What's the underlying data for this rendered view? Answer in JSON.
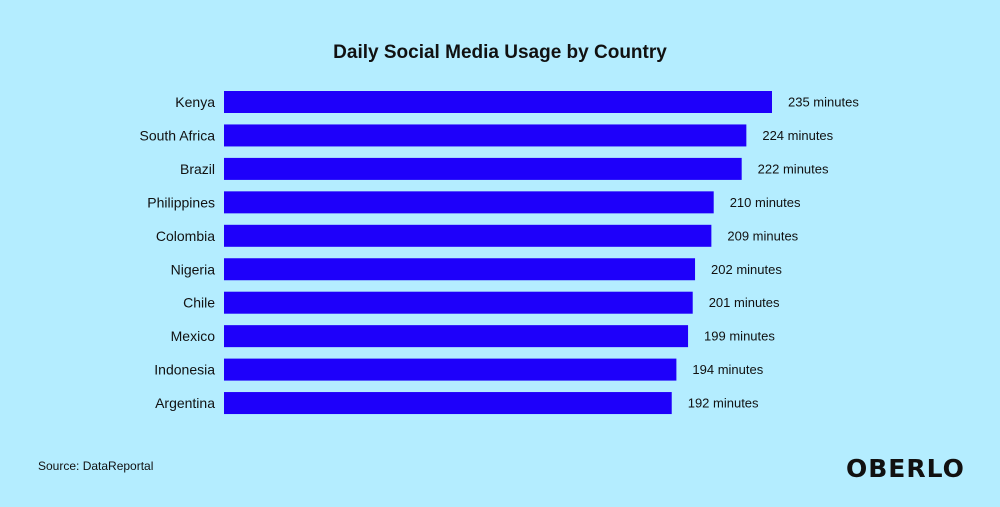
{
  "chart_data": {
    "type": "bar",
    "orientation": "horizontal",
    "title": "Daily Social Media Usage by Country",
    "categories": [
      "Kenya",
      "South Africa",
      "Brazil",
      "Philippines",
      "Colombia",
      "Nigeria",
      "Chile",
      "Mexico",
      "Indonesia",
      "Argentina"
    ],
    "values": [
      235,
      224,
      222,
      210,
      209,
      202,
      201,
      199,
      194,
      192
    ],
    "value_suffix": " minutes",
    "xlim": [
      0,
      235
    ],
    "grid": false,
    "bar_color": "#1e00fa"
  },
  "source": "Source: DataReportal",
  "logo": "OBERLO"
}
